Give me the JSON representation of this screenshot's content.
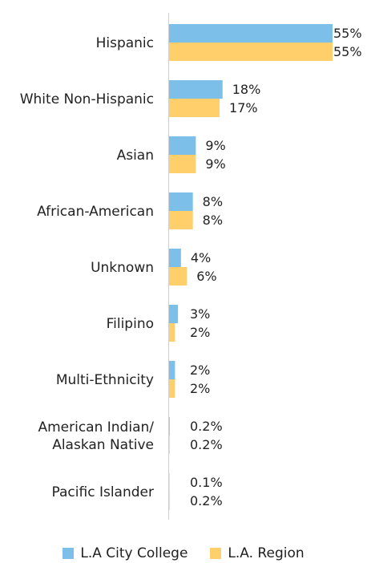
{
  "chart_data": {
    "type": "bar",
    "orientation": "horizontal",
    "categories": [
      "Hispanic",
      "White Non-Hispanic",
      "Asian",
      "African-American",
      "Unknown",
      "Filipino",
      "Multi-Ethnicity",
      "American Indian/\nAlaskan Native",
      "Pacific Islander"
    ],
    "series": [
      {
        "name": "L.A City College",
        "color": "#7cc0ea",
        "values": [
          55,
          18,
          9,
          8,
          4,
          3,
          2,
          0.2,
          0.1
        ],
        "labels": [
          "55%",
          "18%",
          "9%",
          "8%",
          "4%",
          "3%",
          "2%",
          "0.2%",
          "0.1%"
        ]
      },
      {
        "name": "L.A. Region",
        "color": "#ffcf6b",
        "values": [
          55,
          17,
          9,
          8,
          6,
          2,
          2,
          0.2,
          0.2
        ],
        "labels": [
          "55%",
          "17%",
          "9%",
          "8%",
          "6%",
          "2%",
          "2%",
          "0.2%",
          "0.2%"
        ]
      }
    ],
    "xlim": [
      0,
      55
    ],
    "grid": false,
    "legend_position": "bottom"
  }
}
